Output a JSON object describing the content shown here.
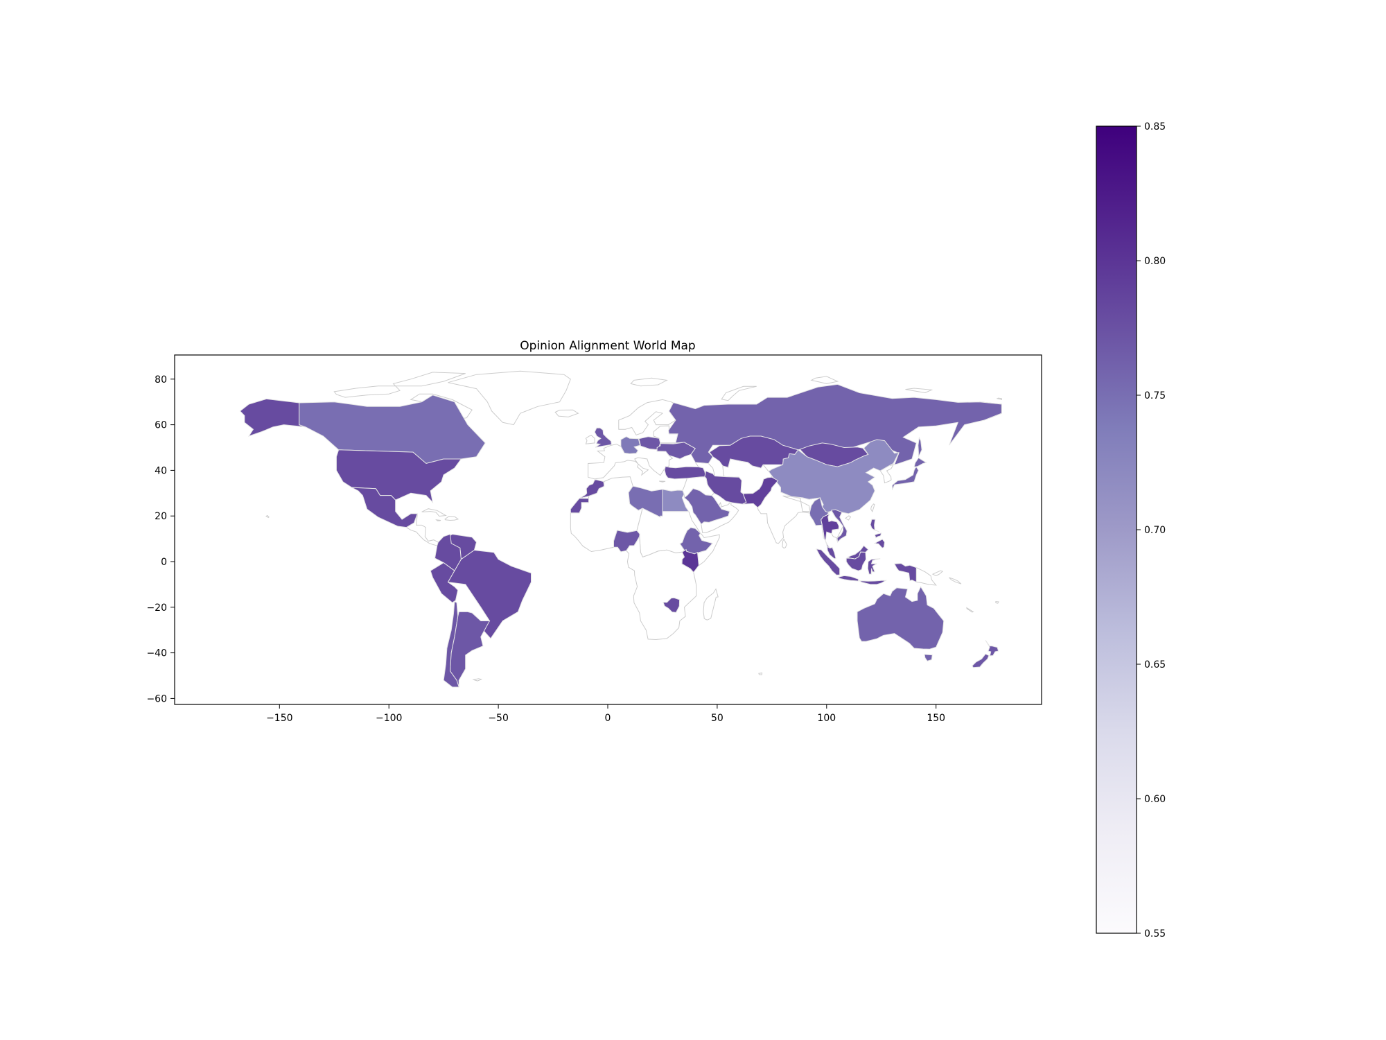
{
  "title": "Opinion Alignment World Map",
  "x_axis": {
    "ticks": [
      -150,
      -100,
      -50,
      0,
      50,
      100,
      150
    ],
    "range": [
      -198,
      198
    ]
  },
  "y_axis": {
    "ticks": [
      80,
      60,
      40,
      20,
      0,
      -20,
      -40,
      -60
    ],
    "range": [
      -63,
      90
    ]
  },
  "colorbar": {
    "min": 0.55,
    "max": 0.85,
    "ticks": [
      "0.85",
      "0.80",
      "0.75",
      "0.70",
      "0.65",
      "0.60",
      "0.55"
    ],
    "colormap": "Purples",
    "gradient": [
      "#fcfbfd",
      "#efedf5",
      "#dadaeb",
      "#bcbddc",
      "#9e9ac8",
      "#807dba",
      "#6a51a3",
      "#54278f",
      "#3f007d"
    ]
  },
  "colors": {
    "no_data_fill": "#ffffff",
    "border": "#cccccc",
    "axis": "#000000"
  },
  "chart_data": {
    "type": "choropleth",
    "title": "Opinion Alignment World Map",
    "value_range": [
      0.55,
      0.85
    ],
    "regions": [
      {
        "name": "Alaska (US)",
        "value": 0.78
      },
      {
        "name": "Canada",
        "value": 0.75
      },
      {
        "name": "United States",
        "value": 0.78
      },
      {
        "name": "Mexico",
        "value": 0.78
      },
      {
        "name": "Venezuela",
        "value": 0.78
      },
      {
        "name": "Colombia",
        "value": 0.78
      },
      {
        "name": "Peru",
        "value": 0.78
      },
      {
        "name": "Brazil",
        "value": 0.78
      },
      {
        "name": "Chile",
        "value": 0.77
      },
      {
        "name": "Argentina",
        "value": 0.77
      },
      {
        "name": "United Kingdom",
        "value": 0.77
      },
      {
        "name": "Germany",
        "value": 0.74
      },
      {
        "name": "Poland",
        "value": 0.77
      },
      {
        "name": "Ukraine",
        "value": 0.77
      },
      {
        "name": "Turkey",
        "value": 0.78
      },
      {
        "name": "Russia",
        "value": 0.76
      },
      {
        "name": "Kazakhstan",
        "value": 0.78
      },
      {
        "name": "Mongolia",
        "value": 0.78
      },
      {
        "name": "China",
        "value": 0.72
      },
      {
        "name": "Japan",
        "value": 0.76
      },
      {
        "name": "Iran",
        "value": 0.78
      },
      {
        "name": "Pakistan",
        "value": 0.79
      },
      {
        "name": "Saudi Arabia",
        "value": 0.76
      },
      {
        "name": "Morocco",
        "value": 0.78
      },
      {
        "name": "Libya",
        "value": 0.75
      },
      {
        "name": "Egypt",
        "value": 0.72
      },
      {
        "name": "Nigeria",
        "value": 0.77
      },
      {
        "name": "Ethiopia",
        "value": 0.76
      },
      {
        "name": "Kenya",
        "value": 0.8
      },
      {
        "name": "Zimbabwe",
        "value": 0.78
      },
      {
        "name": "Thailand",
        "value": 0.79
      },
      {
        "name": "Myanmar",
        "value": 0.75
      },
      {
        "name": "Vietnam",
        "value": 0.77
      },
      {
        "name": "Philippines",
        "value": 0.78
      },
      {
        "name": "Malaysia",
        "value": 0.78
      },
      {
        "name": "Indonesia",
        "value": 0.78
      },
      {
        "name": "Australia",
        "value": 0.76
      },
      {
        "name": "New Zealand",
        "value": 0.77
      }
    ],
    "unfilled_regions": [
      "Greenland",
      "Iceland",
      "Scandinavia",
      "Western Europe",
      "Central Asia",
      "India",
      "Arabian Peninsula",
      "West Africa",
      "Central Africa",
      "Southern Africa",
      "Madagascar",
      "Papua New Guinea",
      "Central America",
      "Caribbean"
    ]
  }
}
